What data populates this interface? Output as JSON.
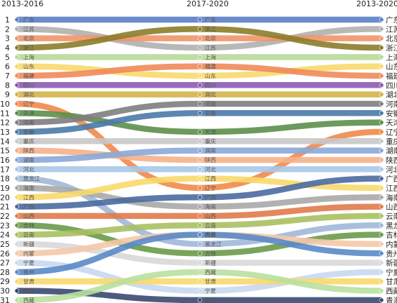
{
  "chart_data": {
    "type": "line",
    "subtype": "rank-bump",
    "columns": [
      "2013-2016",
      "2017-2020",
      "2013-2020"
    ],
    "ranks": [
      1,
      2,
      3,
      4,
      5,
      6,
      7,
      8,
      9,
      10,
      11,
      12,
      13,
      14,
      15,
      16,
      17,
      18,
      19,
      20,
      21,
      22,
      23,
      24,
      25,
      26,
      27,
      28,
      29,
      30,
      31
    ],
    "series": [
      {
        "name": "广东",
        "values": [
          1,
          1,
          1
        ],
        "color": "#5b7fc7"
      },
      {
        "name": "江苏",
        "values": [
          2,
          4,
          2
        ],
        "color": "#b0b0b0"
      },
      {
        "name": "北京",
        "values": [
          3,
          3,
          3
        ],
        "color": "#f0956a"
      },
      {
        "name": "浙江",
        "values": [
          4,
          2,
          4
        ],
        "color": "#8b7d2a"
      },
      {
        "name": "上海",
        "values": [
          5,
          5,
          5
        ],
        "color": "#b9d99a"
      },
      {
        "name": "山东",
        "values": [
          6,
          7,
          6
        ],
        "color": "#f7d96b"
      },
      {
        "name": "福建",
        "values": [
          7,
          6,
          7
        ],
        "color": "#ef8a5b"
      },
      {
        "name": "四川",
        "values": [
          8,
          8,
          8
        ],
        "color": "#8e5bb5"
      },
      {
        "name": "湖北",
        "values": [
          9,
          9,
          9
        ],
        "color": "#d4b24a"
      },
      {
        "name": "辽宁",
        "values": [
          10,
          19,
          13
        ],
        "color": "#f08a4a"
      },
      {
        "name": "天津",
        "values": [
          11,
          13,
          12
        ],
        "color": "#5c8f4a"
      },
      {
        "name": "河南",
        "values": [
          12,
          10,
          10
        ],
        "color": "#7e7e7e"
      },
      {
        "name": "安徽",
        "values": [
          13,
          11,
          11
        ],
        "color": "#4a7aa8"
      },
      {
        "name": "重庆",
        "values": [
          14,
          14,
          14
        ],
        "color": "#c8c8c8"
      },
      {
        "name": "陕西",
        "values": [
          15,
          16,
          16
        ],
        "color": "#f5b08a"
      },
      {
        "name": "湖南",
        "values": [
          16,
          15,
          15
        ],
        "color": "#8aa8d8"
      },
      {
        "name": "河北",
        "values": [
          17,
          17,
          17
        ],
        "color": "#a8c8e8"
      },
      {
        "name": "黑龙江",
        "values": [
          18,
          25,
          23
        ],
        "color": "#a0b8d8"
      },
      {
        "name": "海南",
        "values": [
          19,
          21,
          20
        ],
        "color": "#a8a8a8"
      },
      {
        "name": "江西",
        "values": [
          20,
          18,
          19
        ],
        "color": "#f7d96b"
      },
      {
        "name": "广西",
        "values": [
          21,
          20,
          18
        ],
        "color": "#4a6aa0"
      },
      {
        "name": "山西",
        "values": [
          22,
          22,
          21
        ],
        "color": "#e07a4a"
      },
      {
        "name": "吉林",
        "values": [
          23,
          26,
          24
        ],
        "color": "#6a9a4a"
      },
      {
        "name": "云南",
        "values": [
          24,
          23,
          22
        ],
        "color": "#a8c060"
      },
      {
        "name": "新疆",
        "values": [
          25,
          27,
          27
        ],
        "color": "#d8d8d8"
      },
      {
        "name": "内蒙",
        "values": [
          26,
          24,
          25
        ],
        "color": "#f5c8a8"
      },
      {
        "name": "宁夏",
        "values": [
          27,
          30,
          28
        ],
        "color": "#c8d8f0"
      },
      {
        "name": "贵州",
        "values": [
          28,
          24,
          26
        ],
        "color": "#5a8ac8"
      },
      {
        "name": "甘肃",
        "values": [
          29,
          29,
          29
        ],
        "color": "#f7d96b"
      },
      {
        "name": "青海",
        "values": [
          30,
          31,
          31
        ],
        "color": "#3a4a70"
      },
      {
        "name": "西藏",
        "values": [
          31,
          28,
          30
        ],
        "color": "#b8e0a0"
      }
    ],
    "grid": false,
    "legend": "none"
  }
}
